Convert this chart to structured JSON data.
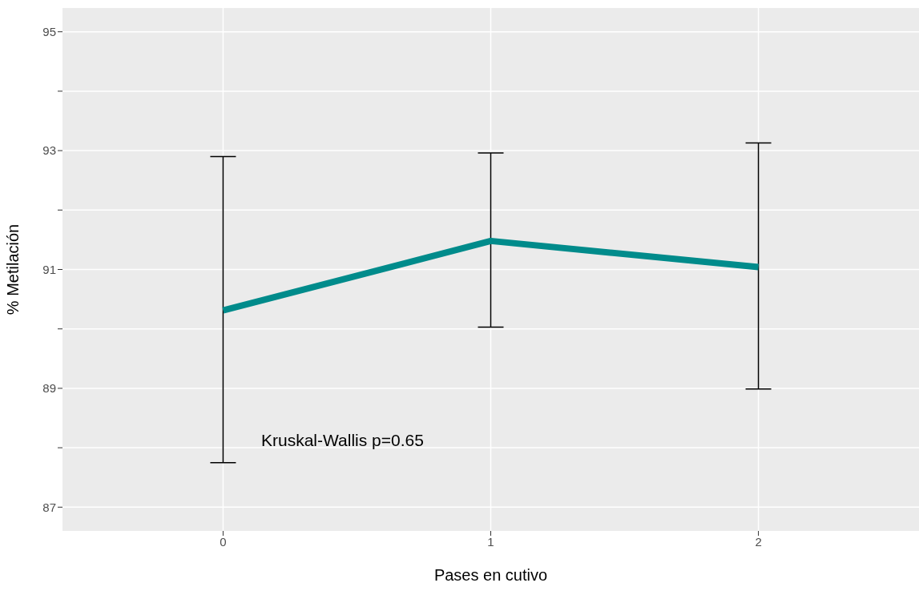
{
  "chart_data": {
    "type": "line",
    "xlabel": "Pases en cutivo",
    "ylabel": "% Metilación",
    "x": [
      0,
      1,
      2
    ],
    "series": [
      {
        "color": "#008b8b",
        "values": [
          90.31,
          91.48,
          91.04
        ],
        "errors": [
          [
            87.75,
            92.9
          ],
          [
            90.03,
            92.96
          ],
          [
            88.99,
            93.13
          ]
        ]
      }
    ],
    "xlim": [
      -0.6,
      2.6
    ],
    "xticks": [
      0,
      1,
      2
    ],
    "ylim": [
      86.6,
      95.4
    ],
    "yticks": [
      87,
      {
        "value": 88,
        "label": null
      },
      89,
      {
        "value": 90,
        "label": null
      },
      91,
      {
        "value": 92,
        "label": null
      },
      93,
      {
        "value": 94,
        "label": null
      },
      95
    ],
    "grid": true,
    "marker": "none",
    "line_style": "solid",
    "annotations": [
      "Kruskal-Wallis p=0.65"
    ]
  }
}
